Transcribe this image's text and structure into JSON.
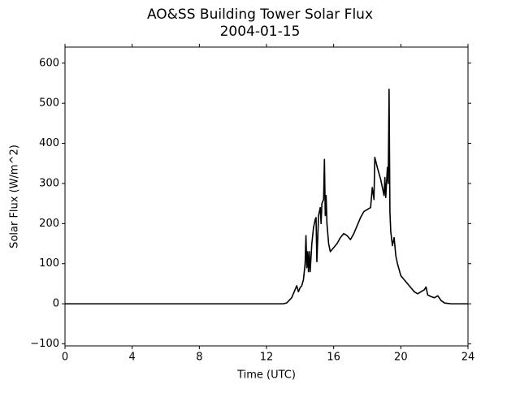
{
  "chart_data": {
    "type": "line",
    "title": "AO&SS Building Tower Solar Flux",
    "subtitle": "2004-01-15",
    "x_label": "Time (UTC)",
    "y_label": "Solar Flux (W/m^2)",
    "x": [
      0,
      13,
      13.2,
      13.5,
      13.7,
      13.8,
      13.9,
      14.0,
      14.1,
      14.2,
      14.3,
      14.35,
      14.4,
      14.45,
      14.5,
      14.55,
      14.6,
      14.7,
      14.8,
      14.9,
      14.95,
      15.0,
      15.1,
      15.2,
      15.25,
      15.3,
      15.4,
      15.45,
      15.5,
      15.55,
      15.6,
      15.7,
      15.8,
      16.0,
      16.2,
      16.4,
      16.6,
      16.8,
      17.0,
      17.2,
      17.4,
      17.6,
      17.8,
      18.0,
      18.2,
      18.3,
      18.4,
      18.45,
      18.6,
      18.8,
      19.0,
      19.05,
      19.1,
      19.2,
      19.25,
      19.3,
      19.35,
      19.4,
      19.5,
      19.6,
      19.7,
      19.8,
      20.0,
      20.2,
      20.5,
      20.8,
      21.0,
      21.2,
      21.4,
      21.5,
      21.6,
      21.8,
      22.0,
      22.2,
      22.4,
      22.6,
      23.0,
      24
    ],
    "series": [
      {
        "name": "Solar Flux",
        "color": "#000000",
        "values": [
          0,
          0,
          2,
          15,
          35,
          45,
          30,
          40,
          45,
          60,
          100,
          170,
          90,
          130,
          80,
          130,
          80,
          150,
          190,
          210,
          215,
          105,
          220,
          240,
          200,
          250,
          260,
          360,
          220,
          270,
          200,
          150,
          130,
          140,
          150,
          165,
          175,
          170,
          160,
          175,
          195,
          215,
          230,
          235,
          240,
          290,
          260,
          365,
          340,
          310,
          270,
          315,
          265,
          340,
          300,
          535,
          230,
          180,
          145,
          165,
          120,
          100,
          70,
          60,
          45,
          30,
          25,
          30,
          35,
          42,
          22,
          18,
          15,
          20,
          8,
          2,
          0,
          0
        ]
      }
    ],
    "xlim": [
      0,
      24
    ],
    "xticks": [
      0,
      4,
      8,
      12,
      16,
      20,
      24
    ],
    "ylim": [
      -105,
      640
    ],
    "yticks": [
      {
        "value": -100,
        "label": "−100"
      },
      0,
      100,
      200,
      300,
      400,
      500,
      600
    ]
  }
}
